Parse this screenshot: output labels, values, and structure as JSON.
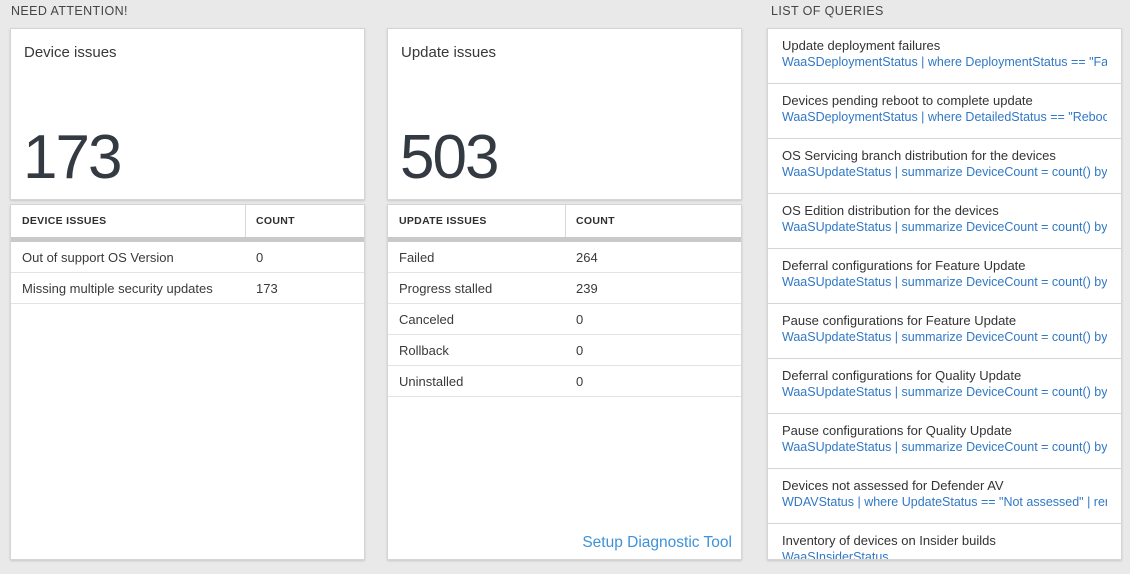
{
  "sections": {
    "need_attention": "NEED ATTENTION!",
    "list_of_queries": "LIST OF QUERIES"
  },
  "cards": [
    {
      "title": "Device issues",
      "value": "173",
      "table": {
        "headers": [
          "DEVICE ISSUES",
          "COUNT"
        ],
        "rows": [
          [
            "Out of support OS Version",
            "0"
          ],
          [
            "Missing multiple security updates",
            "173"
          ]
        ]
      }
    },
    {
      "title": "Update issues",
      "value": "503",
      "table": {
        "headers": [
          "UPDATE ISSUES",
          "COUNT"
        ],
        "rows": [
          [
            "Failed",
            "264"
          ],
          [
            "Progress stalled",
            "239"
          ],
          [
            "Canceled",
            "0"
          ],
          [
            "Rollback",
            "0"
          ],
          [
            "Uninstalled",
            "0"
          ]
        ]
      },
      "footer_link": "Setup Diagnostic Tool"
    }
  ],
  "queries": [
    {
      "title": "Update deployment failures",
      "query": "WaaSDeploymentStatus | where DeploymentStatus == \"Failed\" |..."
    },
    {
      "title": "Devices pending reboot to complete update",
      "query": "WaaSDeploymentStatus | where DetailedStatus == \"Reboot pend..."
    },
    {
      "title": "OS Servicing branch distribution for the devices",
      "query": "WaaSUpdateStatus | summarize DeviceCount = count() by OSSer..."
    },
    {
      "title": "OS Edition distribution for the devices",
      "query": "WaaSUpdateStatus | summarize DeviceCount = count() by OSEdit..."
    },
    {
      "title": "Deferral configurations for Feature Update",
      "query": "WaaSUpdateStatus | summarize DeviceCount = count() by Featur..."
    },
    {
      "title": "Pause configurations for Feature Update",
      "query": "WaaSUpdateStatus | summarize DeviceCount = count() by Featur..."
    },
    {
      "title": "Deferral configurations for Quality Update",
      "query": "WaaSUpdateStatus | summarize DeviceCount = count() by Qualit..."
    },
    {
      "title": "Pause configurations for Quality Update",
      "query": "WaaSUpdateStatus | summarize DeviceCount = count() by Qualit..."
    },
    {
      "title": "Devices not assessed for Defender AV",
      "query": "WDAVStatus | where UpdateStatus == \"Not assessed\" | render ta..."
    },
    {
      "title": "Inventory of devices on Insider builds",
      "query": "WaaSInsiderStatus"
    }
  ],
  "colors": {
    "query_blue": "#3078c5",
    "link_blue": "#3e92d9",
    "big_number": "#333a42",
    "background": "#e9e9e9"
  }
}
